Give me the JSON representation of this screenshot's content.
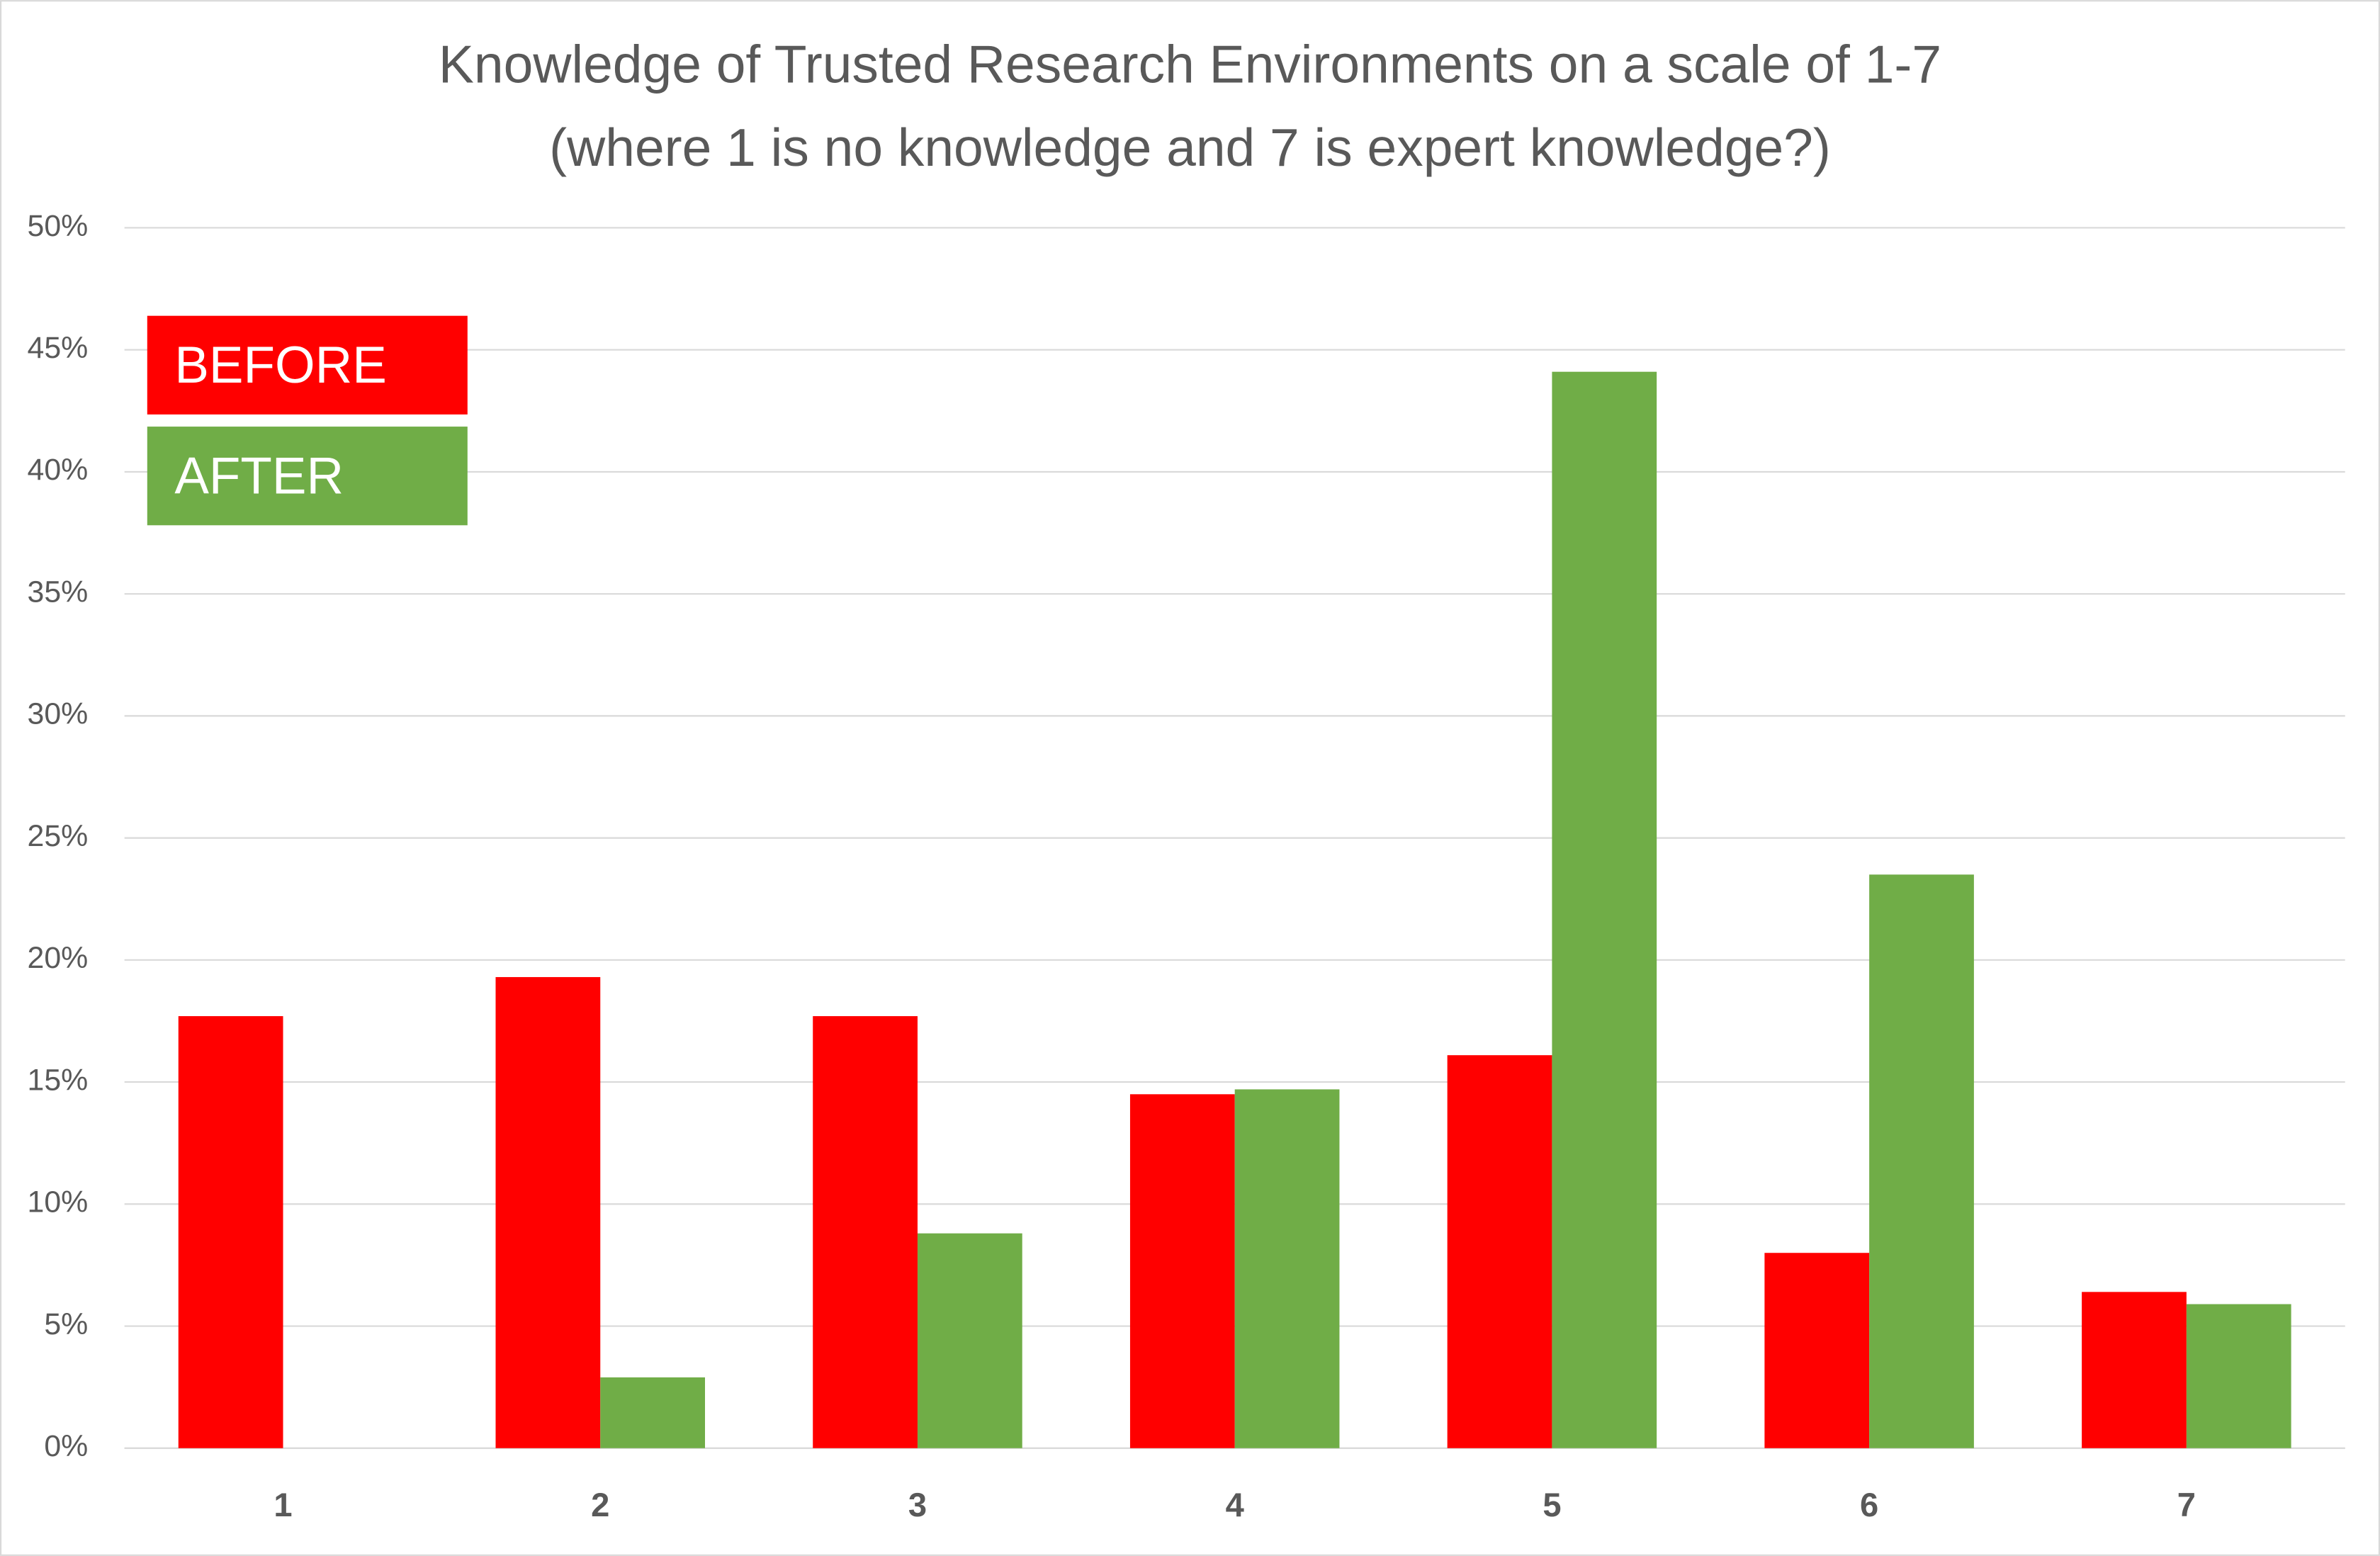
{
  "chart_data": {
    "type": "bar",
    "title": "Knowledge of Trusted Research Environments on a scale of 1-7",
    "subtitle": "(where 1 is no knowledge and 7 is expert knowledge?)",
    "categories": [
      "1",
      "2",
      "3",
      "4",
      "5",
      "6",
      "7"
    ],
    "series": [
      {
        "name": "BEFORE",
        "color": "#ff0000",
        "values": [
          17.7,
          19.3,
          17.7,
          14.5,
          16.1,
          8.0,
          6.4
        ]
      },
      {
        "name": "AFTER",
        "color": "#70ad47",
        "values": [
          0,
          2.9,
          8.8,
          14.7,
          44.1,
          23.5,
          5.9
        ]
      }
    ],
    "ylim": [
      0,
      50
    ],
    "yticks": [
      {
        "value": 0,
        "label": "0%"
      },
      {
        "value": 5,
        "label": "5%"
      },
      {
        "value": 10,
        "label": "10%"
      },
      {
        "value": 15,
        "label": "15%"
      },
      {
        "value": 20,
        "label": "20%"
      },
      {
        "value": 25,
        "label": "25%"
      },
      {
        "value": 30,
        "label": "30%"
      },
      {
        "value": 35,
        "label": "35%"
      },
      {
        "value": 40,
        "label": "40%"
      },
      {
        "value": 45,
        "label": "45%"
      },
      {
        "value": 50,
        "label": "50%"
      }
    ],
    "grid": true,
    "legend": "top-left"
  }
}
